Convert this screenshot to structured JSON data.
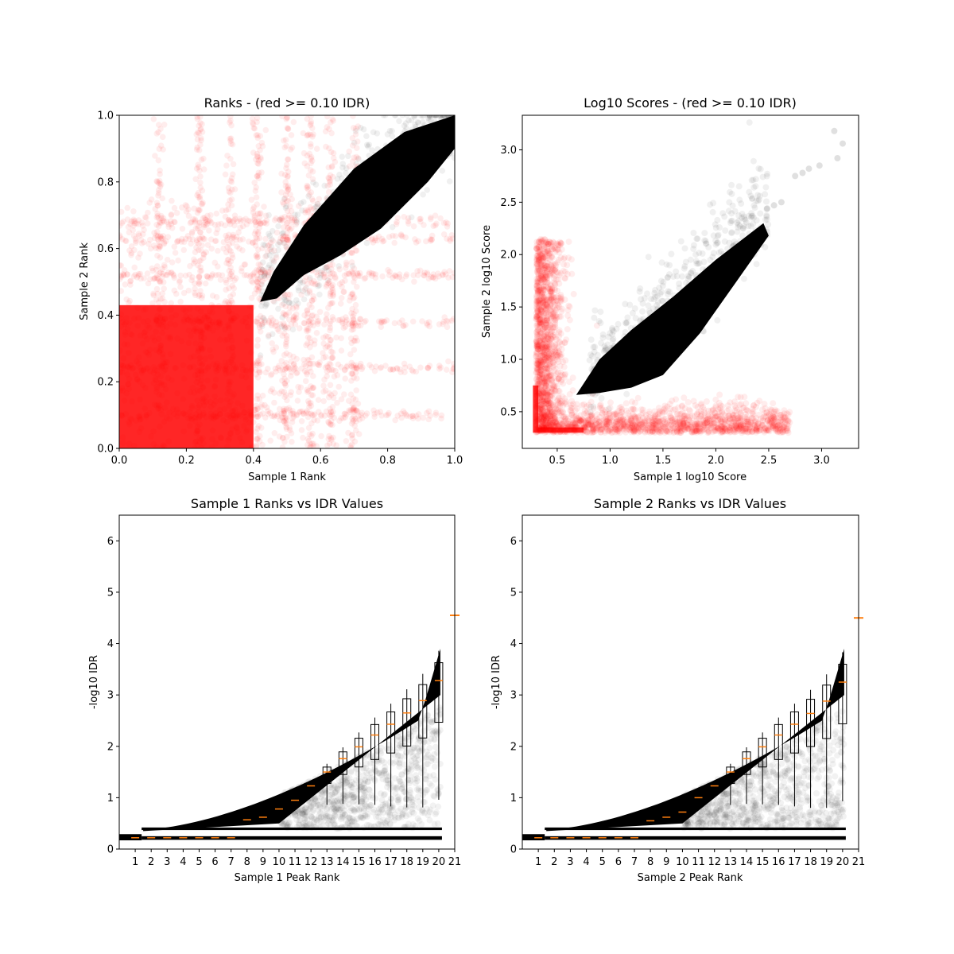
{
  "colors": {
    "red": "#ff0000",
    "black": "#000000",
    "median": "#ff7f0e",
    "frame": "#000000"
  },
  "chart_data": [
    {
      "id": "ranks",
      "type": "scatter",
      "title": "Ranks - (red >= 0.10 IDR)",
      "xlabel": "Sample 1 Rank",
      "ylabel": "Sample 2 Rank",
      "xlim": [
        0.0,
        1.0
      ],
      "ylim": [
        0.0,
        1.0
      ],
      "xticks": [
        "0.0",
        "0.2",
        "0.4",
        "0.6",
        "0.8",
        "1.0"
      ],
      "yticks": [
        "0.0",
        "0.2",
        "0.4",
        "0.6",
        "0.8",
        "1.0"
      ],
      "grid": false,
      "series": [
        {
          "color": "red",
          "description_values": {
            "idr_threshold": 0.1
          }
        },
        {
          "color": "black"
        }
      ]
    },
    {
      "id": "scores",
      "type": "scatter",
      "title": "Log10 Scores - (red >= 0.10 IDR)",
      "xlabel": "Sample 1 log10 Score",
      "ylabel": "Sample 2 log10 Score",
      "xlim": [
        0.17,
        3.35
      ],
      "ylim": [
        0.15,
        3.33
      ],
      "xticks": [
        "0.5",
        "1.0",
        "1.5",
        "2.0",
        "2.5",
        "3.0"
      ],
      "yticks": [
        "0.5",
        "1.0",
        "1.5",
        "2.0",
        "2.5",
        "3.0"
      ],
      "grid": false,
      "series": [
        {
          "color": "red"
        },
        {
          "color": "black",
          "outliers": [
            [
              2.55,
              2.47
            ],
            [
              2.62,
              2.5
            ],
            [
              2.75,
              2.75
            ],
            [
              2.82,
              2.78
            ],
            [
              2.88,
              2.82
            ],
            [
              2.98,
              2.85
            ],
            [
              3.12,
              3.18
            ],
            [
              3.15,
              2.92
            ],
            [
              3.2,
              3.06
            ]
          ]
        }
      ]
    },
    {
      "id": "sample1_idr",
      "type": "scatter",
      "title": "Sample 1 Ranks vs IDR Values",
      "xlabel": "Sample 1 Peak Rank",
      "ylabel": "-log10 IDR",
      "xlim": [
        0.0,
        21.0
      ],
      "ylim": [
        0.0,
        6.5
      ],
      "xticks": [
        "1",
        "2",
        "3",
        "4",
        "5",
        "6",
        "7",
        "8",
        "9",
        "10",
        "11",
        "12",
        "13",
        "14",
        "15",
        "16",
        "17",
        "18",
        "19",
        "20",
        "21"
      ],
      "yticks": [
        "0",
        "1",
        "2",
        "3",
        "4",
        "5",
        "6"
      ],
      "grid": false,
      "box_medians": [
        0.22,
        0.22,
        0.22,
        0.22,
        0.22,
        0.22,
        0.22,
        0.57,
        0.62,
        0.78,
        0.95,
        1.23,
        1.5,
        1.76,
        1.99,
        2.22,
        2.43,
        2.65,
        2.89,
        3.28
      ],
      "outlier_median": 4.55
    },
    {
      "id": "sample2_idr",
      "type": "scatter",
      "title": "Sample 2 Ranks vs IDR Values",
      "xlabel": "Sample 2 Peak Rank",
      "ylabel": "-log10 IDR",
      "xlim": [
        0.0,
        21.0
      ],
      "ylim": [
        0.0,
        6.5
      ],
      "xticks": [
        "1",
        "2",
        "3",
        "4",
        "5",
        "6",
        "7",
        "8",
        "9",
        "10",
        "11",
        "12",
        "13",
        "14",
        "15",
        "16",
        "17",
        "18",
        "19",
        "20",
        "21"
      ],
      "yticks": [
        "0",
        "1",
        "2",
        "3",
        "4",
        "5",
        "6"
      ],
      "grid": false,
      "box_medians": [
        0.22,
        0.22,
        0.22,
        0.22,
        0.22,
        0.22,
        0.22,
        0.55,
        0.62,
        0.72,
        1.0,
        1.23,
        1.5,
        1.76,
        1.99,
        2.22,
        2.43,
        2.64,
        2.88,
        3.25
      ],
      "outlier_median": 4.5
    }
  ]
}
